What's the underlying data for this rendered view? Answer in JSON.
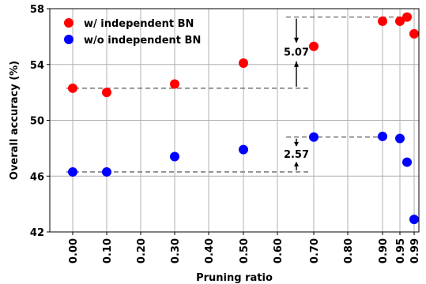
{
  "chart_data": {
    "type": "scatter",
    "xlabel": "Pruning ratio",
    "ylabel": "Overall accuracy (%)",
    "ylim": [
      42,
      58
    ],
    "yticks": [
      "42",
      "46",
      "50",
      "54",
      "58"
    ],
    "xtick_labels": [
      "0.00",
      "0.10",
      "0.20",
      "0.30",
      "0.40",
      "0.50",
      "0.60",
      "0.70",
      "0.80",
      "0.90",
      "0.95",
      "0.99"
    ],
    "grid": true,
    "legend_position": "top-left",
    "series": [
      {
        "name": "w/ independent BN",
        "color": "#ff0000",
        "points": [
          {
            "x": 0.0,
            "y": 52.3
          },
          {
            "x": 0.1,
            "y": 52.0
          },
          {
            "x": 0.3,
            "y": 52.6
          },
          {
            "x": 0.5,
            "y": 54.1
          },
          {
            "x": 0.7,
            "y": 55.3
          },
          {
            "x": 0.9,
            "y": 57.1
          },
          {
            "x": 0.95,
            "y": 57.1
          },
          {
            "x": 0.97,
            "y": 57.4
          },
          {
            "x": 0.99,
            "y": 56.2
          }
        ]
      },
      {
        "name": "w/o independent BN",
        "color": "#0000ff",
        "points": [
          {
            "x": 0.0,
            "y": 46.3
          },
          {
            "x": 0.1,
            "y": 46.3
          },
          {
            "x": 0.3,
            "y": 47.4
          },
          {
            "x": 0.5,
            "y": 47.9
          },
          {
            "x": 0.7,
            "y": 48.8
          },
          {
            "x": 0.9,
            "y": 48.85
          },
          {
            "x": 0.95,
            "y": 48.7
          },
          {
            "x": 0.97,
            "y": 47.0
          },
          {
            "x": 0.99,
            "y": 42.9
          }
        ]
      }
    ],
    "annotations": [
      {
        "text": "5.07",
        "y_low": 52.3,
        "y_high": 57.4
      },
      {
        "text": "2.57",
        "y_low": 46.3,
        "y_high": 48.8
      }
    ]
  }
}
